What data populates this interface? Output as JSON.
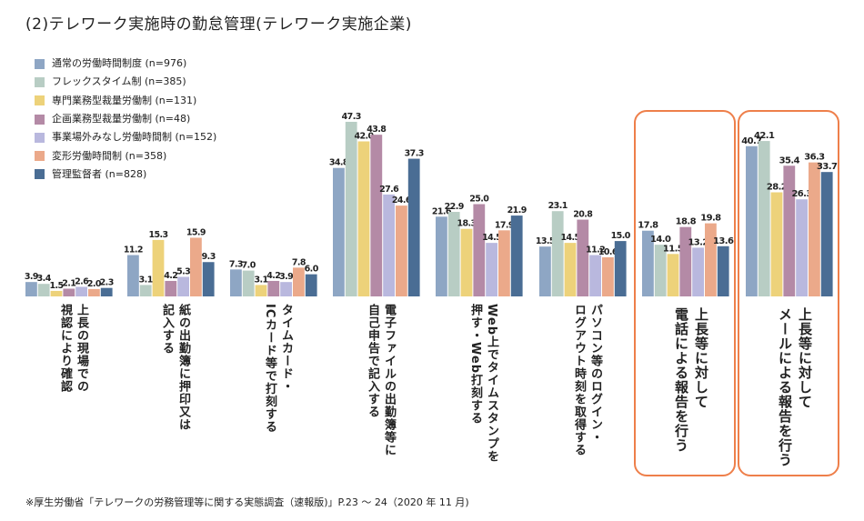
{
  "title": "(2)テレワーク実施時の勤怠管理(テレワーク実施企業)",
  "source": "※厚生労働省「テレワークの労務管理等に関する実態調査（速報版)」P.23 ～ 24（2020 年 11 月)",
  "chart_data": {
    "type": "bar",
    "title": "(2)テレワーク実施時の勤怠管理(テレワーク実施企業)",
    "categories": [
      "上長の現場での\n視認により確認",
      "紙の出勤簿に押印又は\n記入する",
      "タイムカード・\nICカード等で打刻する",
      "電子ファイルの出勤簿等に\n自己申告で記入する",
      "Web上でタイムスタンプを\n押す・Web打刻する",
      "パソコン等のログイン・\nログアウト時刻を取得する",
      "上長等に対して\n電話による報告を行う",
      "上長等に対して\nメールによる報告を行う"
    ],
    "highlighted": [
      6,
      7
    ],
    "series": [
      {
        "name": "通常の労働時間制度 (n=976)",
        "color": "#8ea6c4",
        "values": [
          3.9,
          11.2,
          7.3,
          34.8,
          21.6,
          13.5,
          17.8,
          40.7
        ]
      },
      {
        "name": "フレックスタイム制 (n=385)",
        "color": "#b8cdc4",
        "values": [
          3.4,
          3.1,
          7.0,
          47.3,
          22.9,
          23.1,
          14.0,
          42.1
        ]
      },
      {
        "name": "専門業務型裁量労働制 (n=131)",
        "color": "#edd27a",
        "values": [
          1.5,
          15.3,
          3.1,
          42.0,
          18.3,
          14.5,
          11.5,
          28.2
        ]
      },
      {
        "name": "企画業務型裁量労働制 (n=48)",
        "color": "#b48aa6",
        "values": [
          2.1,
          4.2,
          4.2,
          43.8,
          25.0,
          20.8,
          18.8,
          35.4
        ]
      },
      {
        "name": "事業場外みなし労働時間制 (n=152)",
        "color": "#b9b8de",
        "values": [
          2.6,
          5.3,
          3.9,
          27.6,
          14.5,
          11.2,
          13.2,
          26.3
        ]
      },
      {
        "name": "変形労働時間制 (n=358)",
        "color": "#eba98a",
        "values": [
          2.0,
          15.9,
          7.8,
          24.6,
          17.9,
          10.6,
          19.8,
          36.3
        ]
      },
      {
        "name": "管理監督者 (n=828)",
        "color": "#4a6d94",
        "values": [
          2.3,
          9.3,
          6.0,
          37.3,
          21.9,
          15.0,
          13.6,
          33.7
        ]
      }
    ],
    "ylim": [
      0,
      50
    ],
    "legend": "top-left",
    "grid": false
  }
}
